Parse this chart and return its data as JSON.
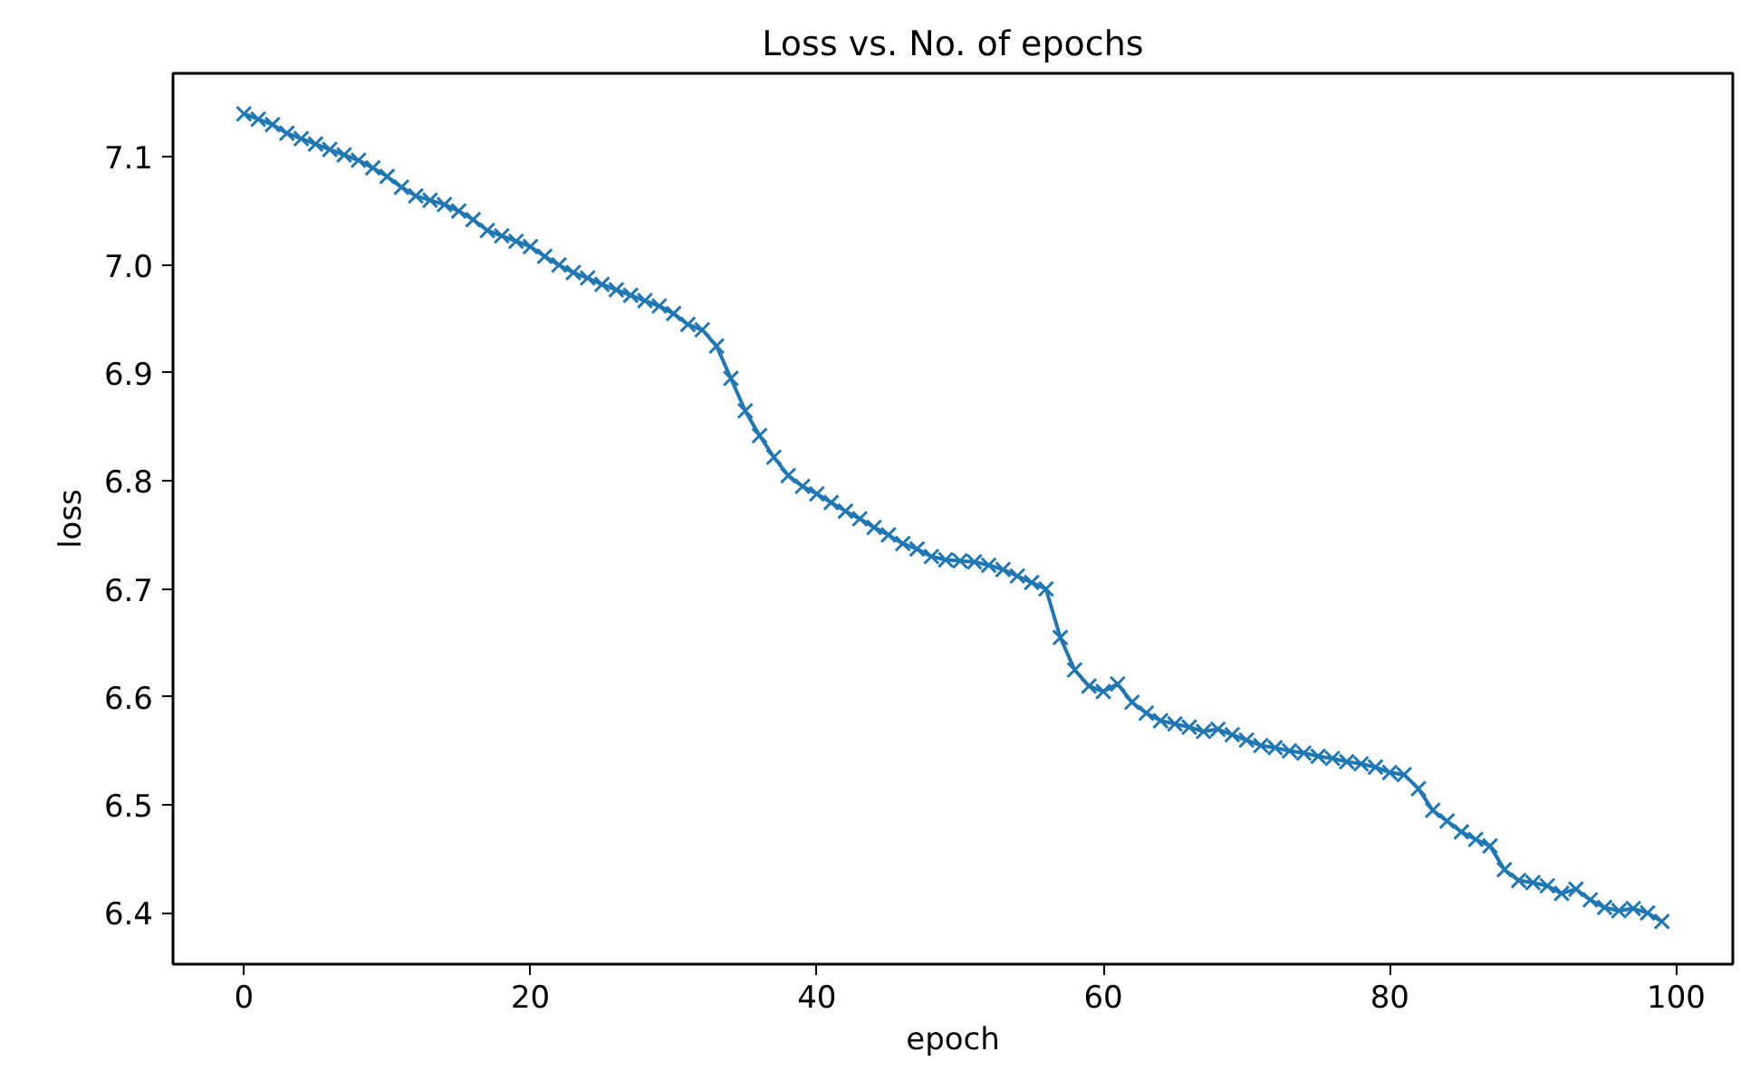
{
  "chart_data": {
    "type": "line",
    "title": "Loss vs. No. of epochs",
    "xlabel": "epoch",
    "ylabel": "loss",
    "x": [
      0,
      1,
      2,
      3,
      4,
      5,
      6,
      7,
      8,
      9,
      10,
      11,
      12,
      13,
      14,
      15,
      16,
      17,
      18,
      19,
      20,
      21,
      22,
      23,
      24,
      25,
      26,
      27,
      28,
      29,
      30,
      31,
      32,
      33,
      34,
      35,
      36,
      37,
      38,
      39,
      40,
      41,
      42,
      43,
      44,
      45,
      46,
      47,
      48,
      49,
      50,
      51,
      52,
      53,
      54,
      55,
      56,
      57,
      58,
      59,
      60,
      61,
      62,
      63,
      64,
      65,
      66,
      67,
      68,
      69,
      70,
      71,
      72,
      73,
      74,
      75,
      76,
      77,
      78,
      79,
      80,
      81,
      82,
      83,
      84,
      85,
      86,
      87,
      88,
      89,
      90,
      91,
      92,
      93,
      94,
      95,
      96,
      97,
      98,
      99
    ],
    "series": [
      {
        "color": "#1f77b4",
        "values": [
          7.14,
          7.135,
          7.13,
          7.122,
          7.117,
          7.112,
          7.107,
          7.102,
          7.097,
          7.09,
          7.082,
          7.072,
          7.064,
          7.06,
          7.056,
          7.05,
          7.042,
          7.032,
          7.027,
          7.022,
          7.017,
          7.008,
          7.0,
          6.993,
          6.988,
          6.982,
          6.977,
          6.972,
          6.967,
          6.962,
          6.955,
          6.945,
          6.94,
          6.925,
          6.895,
          6.865,
          6.842,
          6.822,
          6.805,
          6.795,
          6.788,
          6.78,
          6.772,
          6.765,
          6.757,
          6.75,
          6.742,
          6.737,
          6.73,
          6.727,
          6.726,
          6.725,
          6.722,
          6.718,
          6.712,
          6.706,
          6.7,
          6.655,
          6.625,
          6.61,
          6.605,
          6.612,
          6.595,
          6.585,
          6.578,
          6.575,
          6.572,
          6.568,
          6.57,
          6.565,
          6.56,
          6.555,
          6.553,
          6.55,
          6.548,
          6.545,
          6.543,
          6.54,
          6.538,
          6.535,
          6.53,
          6.528,
          6.515,
          6.495,
          6.485,
          6.475,
          6.468,
          6.462,
          6.44,
          6.43,
          6.428,
          6.425,
          6.418,
          6.422,
          6.412,
          6.405,
          6.402,
          6.404,
          6.4,
          6.392
        ]
      }
    ],
    "xlim": [
      -4.95,
      103.95
    ],
    "ylim": [
      6.3525,
      7.1775
    ],
    "xticks": [
      0,
      20,
      40,
      60,
      80,
      100
    ],
    "yticks": [
      {
        "value": 6.4,
        "label": "6.4"
      },
      {
        "value": 6.5,
        "label": "6.5"
      },
      {
        "value": 6.6,
        "label": "6.6"
      },
      {
        "value": 6.7,
        "label": "6.7"
      },
      {
        "value": 6.8,
        "label": "6.8"
      },
      {
        "value": 6.9,
        "label": "6.9"
      },
      {
        "value": 7.0,
        "label": "7.0"
      },
      {
        "value": 7.1,
        "label": "7.1"
      }
    ],
    "marker": "cross",
    "line_style": "solid",
    "grid": false
  }
}
